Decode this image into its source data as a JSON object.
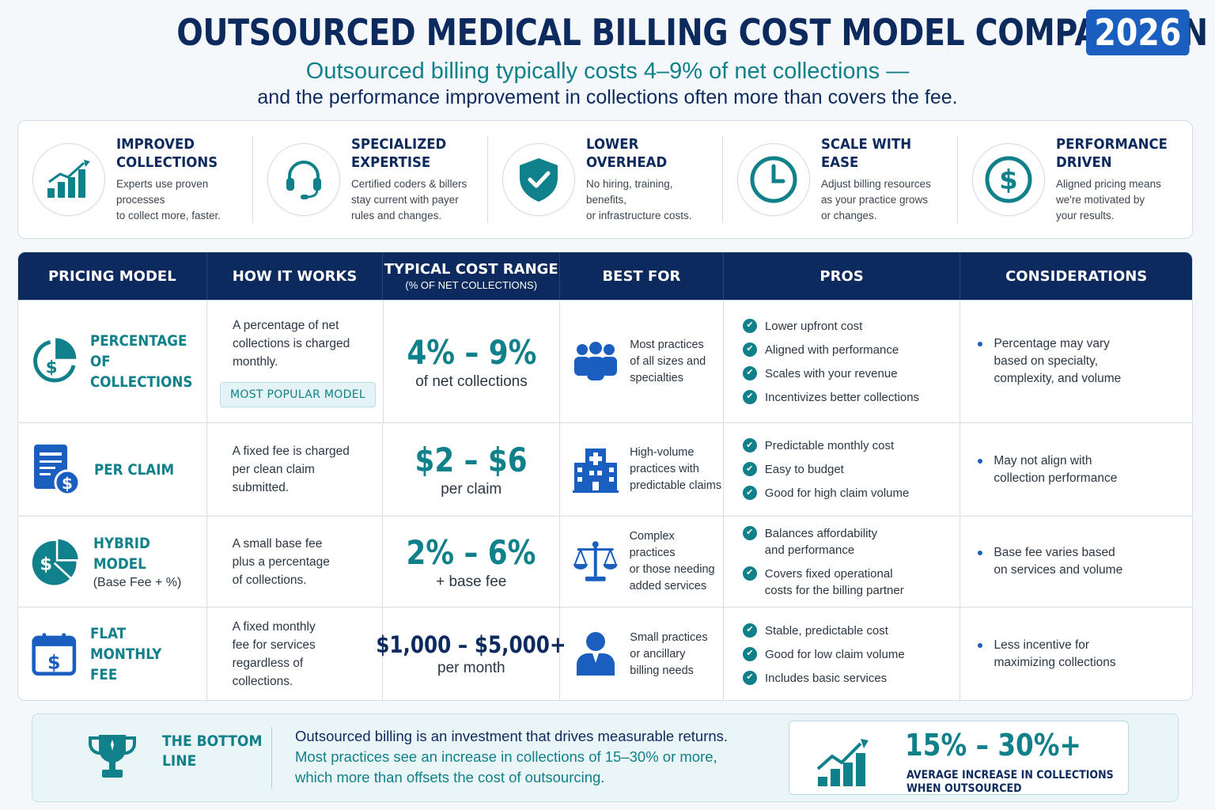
{
  "header": {
    "title": "OUTSOURCED MEDICAL BILLING COST MODEL COMPARISON",
    "year": "2026",
    "subtitle_line1": "Outsourced billing typically costs 4–9% of net collections —",
    "subtitle_line2": "and the performance improvement in collections often more than covers the fee."
  },
  "benefits": [
    {
      "title1": "IMPROVED",
      "title2": "COLLECTIONS",
      "desc1": "Experts use proven processes",
      "desc2": "to collect more, faster.",
      "desc3": "",
      "icon": "bar-chart-up-icon"
    },
    {
      "title1": "SPECIALIZED",
      "title2": "EXPERTISE",
      "desc1": "Certified coders & billers",
      "desc2": "stay current with payer",
      "desc3": "rules and changes.",
      "icon": "headset-icon"
    },
    {
      "title1": "LOWER OVERHEAD",
      "title2": "",
      "desc1": "No hiring, training, benefits,",
      "desc2": "or infrastructure costs.",
      "desc3": "",
      "icon": "shield-check-icon"
    },
    {
      "title1": "SCALE WITH EASE",
      "title2": "",
      "desc1": "Adjust billing resources",
      "desc2": "as your practice grows",
      "desc3": "or changes.",
      "icon": "clock-icon"
    },
    {
      "title1": "PERFORMANCE",
      "title2": "DRIVEN",
      "desc1": "Aligned pricing means",
      "desc2": "we're motivated by",
      "desc3": "your results.",
      "icon": "dollar-circle-icon"
    }
  ],
  "table": {
    "headers": {
      "model": "PRICING MODEL",
      "how": "HOW IT WORKS",
      "cost": "TYPICAL COST RANGE",
      "cost_sub": "(% OF NET COLLECTIONS)",
      "best": "BEST FOR",
      "pros": "PROS",
      "cons": "CONSIDERATIONS"
    },
    "rows": [
      {
        "name1": "PERCENTAGE OF",
        "name2": "COLLECTIONS",
        "name_sub": "",
        "how1": "A percentage of net",
        "how2": "collections is charged",
        "how3": "monthly.",
        "how4": "",
        "badge": "MOST POPULAR MODEL",
        "cost": "4% – 9%",
        "cost_sub": "of net collections",
        "best1": "Most practices",
        "best2": "of all sizes and",
        "best3": "specialties",
        "pros": [
          "Lower upfront cost",
          "Aligned with performance",
          "Scales with your revenue",
          "Incentivizes better collections"
        ],
        "con1": "Percentage may vary",
        "con2": "based on specialty,",
        "con3": "complexity, and volume"
      },
      {
        "name1": "PER CLAIM",
        "name2": "",
        "name_sub": "",
        "how1": "A fixed fee is charged",
        "how2": "per clean claim",
        "how3": "submitted.",
        "how4": "",
        "cost": "$2 – $6",
        "cost_sub": "per claim",
        "best1": "High-volume",
        "best2": "practices with",
        "best3": "predictable claims",
        "pros": [
          "Predictable monthly cost",
          "Easy to budget",
          "Good for high claim volume"
        ],
        "con1": "May not align with",
        "con2": "collection performance",
        "con3": ""
      },
      {
        "name1": "HYBRID MODEL",
        "name2": "",
        "name_sub": "(Base Fee + %)",
        "how1": "A small base fee",
        "how2": "plus a percentage",
        "how3": "of collections.",
        "how4": "",
        "cost": "2% – 6%",
        "cost_sub": "+ base fee",
        "best1": "Complex practices",
        "best2": "or those needing",
        "best3": "added services",
        "pros1a": "Balances affordability",
        "pros1b": "and performance",
        "pros2a": "Covers fixed operational",
        "pros2b": "costs for the billing partner",
        "con1": "Base fee varies based",
        "con2": "on services and volume",
        "con3": ""
      },
      {
        "name1": "FLAT MONTHLY",
        "name2": "FEE",
        "name_sub": "",
        "how1": "A fixed monthly",
        "how2": "fee for services",
        "how3": "regardless of",
        "how4": "collections.",
        "cost": "$1,000 – $5,000+",
        "cost_sub": "per month",
        "best1": "Small practices",
        "best2": "or ancillary",
        "best3": "billing needs",
        "pros": [
          "Stable, predictable cost",
          "Good for low claim volume",
          "Includes basic services"
        ],
        "con1": "Less incentive for",
        "con2": "maximizing collections",
        "con3": ""
      }
    ]
  },
  "bottom": {
    "label1": "THE BOTTOM",
    "label2": "LINE",
    "text1": "Outsourced billing is an investment that drives measurable returns.",
    "text2": "Most practices see an increase in collections of 15–30% or more,",
    "text3": "which more than offsets the cost of outsourcing.",
    "stat": "15% – 30%+",
    "stat_label1": "AVERAGE INCREASE IN COLLECTIONS",
    "stat_label2": "WHEN OUTSOURCED"
  },
  "colors": {
    "navy": "#0d2a5e",
    "teal": "#10808a",
    "blue": "#1a5fc0"
  }
}
